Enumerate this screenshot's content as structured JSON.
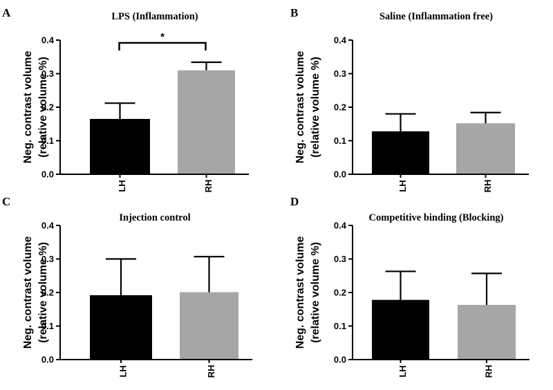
{
  "figure": {
    "background": "#ffffff",
    "bar_colors": [
      "#000000",
      "#a6a6a6"
    ]
  },
  "chart_data": [
    {
      "panel": "A",
      "type": "bar",
      "title": "LPS (Inflammation)",
      "xlabel": "",
      "ylabel": [
        "Neg. contrast volume",
        "(relative volume %)"
      ],
      "categories": [
        "LH",
        "RH"
      ],
      "values": [
        0.165,
        0.31
      ],
      "errors": [
        0.047,
        0.024
      ],
      "ylim": [
        0,
        0.4
      ],
      "yticks": [
        "0.0",
        "0.1",
        "0.2",
        "0.3",
        "0.4"
      ],
      "annotation": {
        "between": [
          0,
          1
        ],
        "label": "*"
      }
    },
    {
      "panel": "B",
      "type": "bar",
      "title": "Saline (Inflammation free)",
      "xlabel": "",
      "ylabel": [
        "Neg. contrast volume",
        "(relative volume %)"
      ],
      "categories": [
        "LH",
        "RH"
      ],
      "values": [
        0.128,
        0.152
      ],
      "errors": [
        0.052,
        0.032
      ],
      "ylim": [
        0,
        0.4
      ],
      "yticks": [
        "0.0",
        "0.1",
        "0.2",
        "0.3",
        "0.4"
      ]
    },
    {
      "panel": "C",
      "type": "bar",
      "title": "Injection control",
      "xlabel": "",
      "ylabel": [
        "Neg. contrast volume",
        "(relative volume %)"
      ],
      "categories": [
        "LH",
        "RH"
      ],
      "values": [
        0.192,
        0.201
      ],
      "errors": [
        0.108,
        0.106
      ],
      "ylim": [
        0,
        0.4
      ],
      "yticks": [
        "0.0",
        "0.1",
        "0.2",
        "0.3",
        "0.4"
      ]
    },
    {
      "panel": "D",
      "type": "bar",
      "title": "Competitive binding (Blocking)",
      "xlabel": "",
      "ylabel": [
        "Neg. contrast volume",
        "(relative volume %)"
      ],
      "categories": [
        "LH",
        "RH"
      ],
      "values": [
        0.178,
        0.163
      ],
      "errors": [
        0.085,
        0.094
      ],
      "ylim": [
        0,
        0.4
      ],
      "yticks": [
        "0.0",
        "0.1",
        "0.2",
        "0.3",
        "0.4"
      ]
    }
  ]
}
